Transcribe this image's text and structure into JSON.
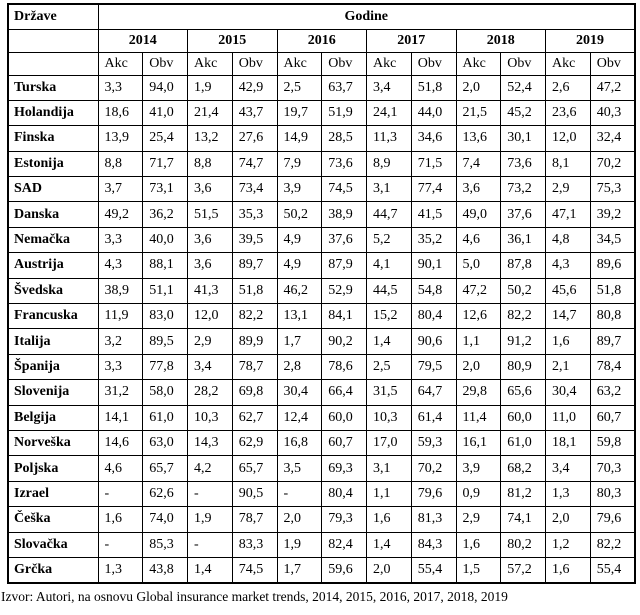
{
  "table": {
    "corner_label": "Države",
    "years_header": "Godine",
    "years": [
      "2014",
      "2015",
      "2016",
      "2017",
      "2018",
      "2019"
    ],
    "sub_headers": [
      "Akc",
      "Obv"
    ],
    "rows": [
      {
        "country": "Turska",
        "values": [
          "3,3",
          "94,0",
          "1,9",
          "42,9",
          "2,5",
          "63,7",
          "3,4",
          "51,8",
          "2,0",
          "52,4",
          "2,6",
          "47,2"
        ]
      },
      {
        "country": "Holandija",
        "values": [
          "18,6",
          "41,0",
          "21,4",
          "43,7",
          "19,7",
          "51,9",
          "24,1",
          "44,0",
          "21,5",
          "45,2",
          "23,6",
          "40,3"
        ]
      },
      {
        "country": "Finska",
        "values": [
          "13,9",
          "25,4",
          "13,2",
          "27,6",
          "14,9",
          "28,5",
          "11,3",
          "34,6",
          "13,6",
          "30,1",
          "12,0",
          "32,4"
        ]
      },
      {
        "country": "Estonija",
        "values": [
          "8,8",
          "71,7",
          "8,8",
          "74,7",
          "7,9",
          "73,6",
          "8,9",
          "71,5",
          "7,4",
          "73,6",
          "8,1",
          "70,2"
        ]
      },
      {
        "country": "SAD",
        "values": [
          "3,7",
          "73,1",
          "3,6",
          "73,4",
          "3,9",
          "74,5",
          "3,1",
          "77,4",
          "3,6",
          "73,2",
          "2,9",
          "75,3"
        ]
      },
      {
        "country": "Danska",
        "values": [
          "49,2",
          "36,2",
          "51,5",
          "35,3",
          "50,2",
          "38,9",
          "44,7",
          "41,5",
          "49,0",
          "37,6",
          "47,1",
          "39,2"
        ]
      },
      {
        "country": "Nemačka",
        "values": [
          "3,3",
          "40,0",
          "3,6",
          "39,5",
          "4,9",
          "37,6",
          "5,2",
          "35,2",
          "4,6",
          "36,1",
          "4,8",
          "34,5"
        ]
      },
      {
        "country": "Austrija",
        "values": [
          "4,3",
          "88,1",
          "3,6",
          "89,7",
          "4,9",
          "87,9",
          "4,1",
          "90,1",
          "5,0",
          "87,8",
          "4,3",
          "89,6"
        ]
      },
      {
        "country": "Švedska",
        "values": [
          "38,9",
          "51,1",
          "41,3",
          "51,8",
          "46,2",
          "52,9",
          "44,5",
          "54,8",
          "47,2",
          "50,2",
          "45,6",
          "51,8"
        ]
      },
      {
        "country": "Francuska",
        "values": [
          "11,9",
          "83,0",
          "12,0",
          "82,2",
          "13,1",
          "84,1",
          "15,2",
          "80,4",
          "12,6",
          "82,2",
          "14,7",
          "80,8"
        ]
      },
      {
        "country": "Italija",
        "values": [
          "3,2",
          "89,5",
          "2,9",
          "89,9",
          "1,7",
          "90,2",
          "1,4",
          "90,6",
          "1,1",
          "91,2",
          "1,6",
          "89,7"
        ]
      },
      {
        "country": "Španija",
        "values": [
          "3,3",
          "77,8",
          "3,4",
          "78,7",
          "2,8",
          "78,6",
          "2,5",
          "79,5",
          "2,0",
          "80,9",
          "2,1",
          "78,4"
        ]
      },
      {
        "country": "Slovenija",
        "values": [
          "31,2",
          "58,0",
          "28,2",
          "69,8",
          "30,4",
          "66,4",
          "31,5",
          "64,7",
          "29,8",
          "65,6",
          "30,4",
          "63,2"
        ]
      },
      {
        "country": "Belgija",
        "values": [
          "14,1",
          "61,0",
          "10,3",
          "62,7",
          "12,4",
          "60,0",
          "10,3",
          "61,4",
          "11,4",
          "60,0",
          "11,0",
          "60,7"
        ]
      },
      {
        "country": "Norveška",
        "values": [
          "14,6",
          "63,0",
          "14,3",
          "62,9",
          "16,8",
          "60,7",
          "17,0",
          "59,3",
          "16,1",
          "61,0",
          "18,1",
          "59,8"
        ]
      },
      {
        "country": "Poljska",
        "values": [
          "4,6",
          "65,7",
          "4,2",
          "65,7",
          "3,5",
          "69,3",
          "3,1",
          "70,2",
          "3,9",
          "68,2",
          "3,4",
          "70,3"
        ]
      },
      {
        "country": "Izrael",
        "values": [
          "-",
          "62,6",
          "-",
          "90,5",
          "-",
          "80,4",
          "1,1",
          "79,6",
          "0,9",
          "81,2",
          "1,3",
          "80,3"
        ]
      },
      {
        "country": "Češka",
        "values": [
          "1,6",
          "74,0",
          "1,9",
          "78,7",
          "2,0",
          "79,3",
          "1,6",
          "81,3",
          "2,9",
          "74,1",
          "2,0",
          "79,6"
        ]
      },
      {
        "country": "Slovačka",
        "values": [
          "-",
          "85,3",
          "-",
          "83,3",
          "1,9",
          "82,4",
          "1,4",
          "84,3",
          "1,6",
          "80,2",
          "1,2",
          "82,2"
        ]
      },
      {
        "country": "Grčka",
        "values": [
          "1,3",
          "43,8",
          "1,4",
          "74,5",
          "1,7",
          "59,6",
          "2,0",
          "55,4",
          "1,5",
          "57,2",
          "1,6",
          "55,4"
        ]
      }
    ]
  },
  "footer": {
    "source_note": "Izvor: Autori, na osnovu Global insurance market trends, 2014, 2015, 2016, 2017, 2018, 2019"
  }
}
